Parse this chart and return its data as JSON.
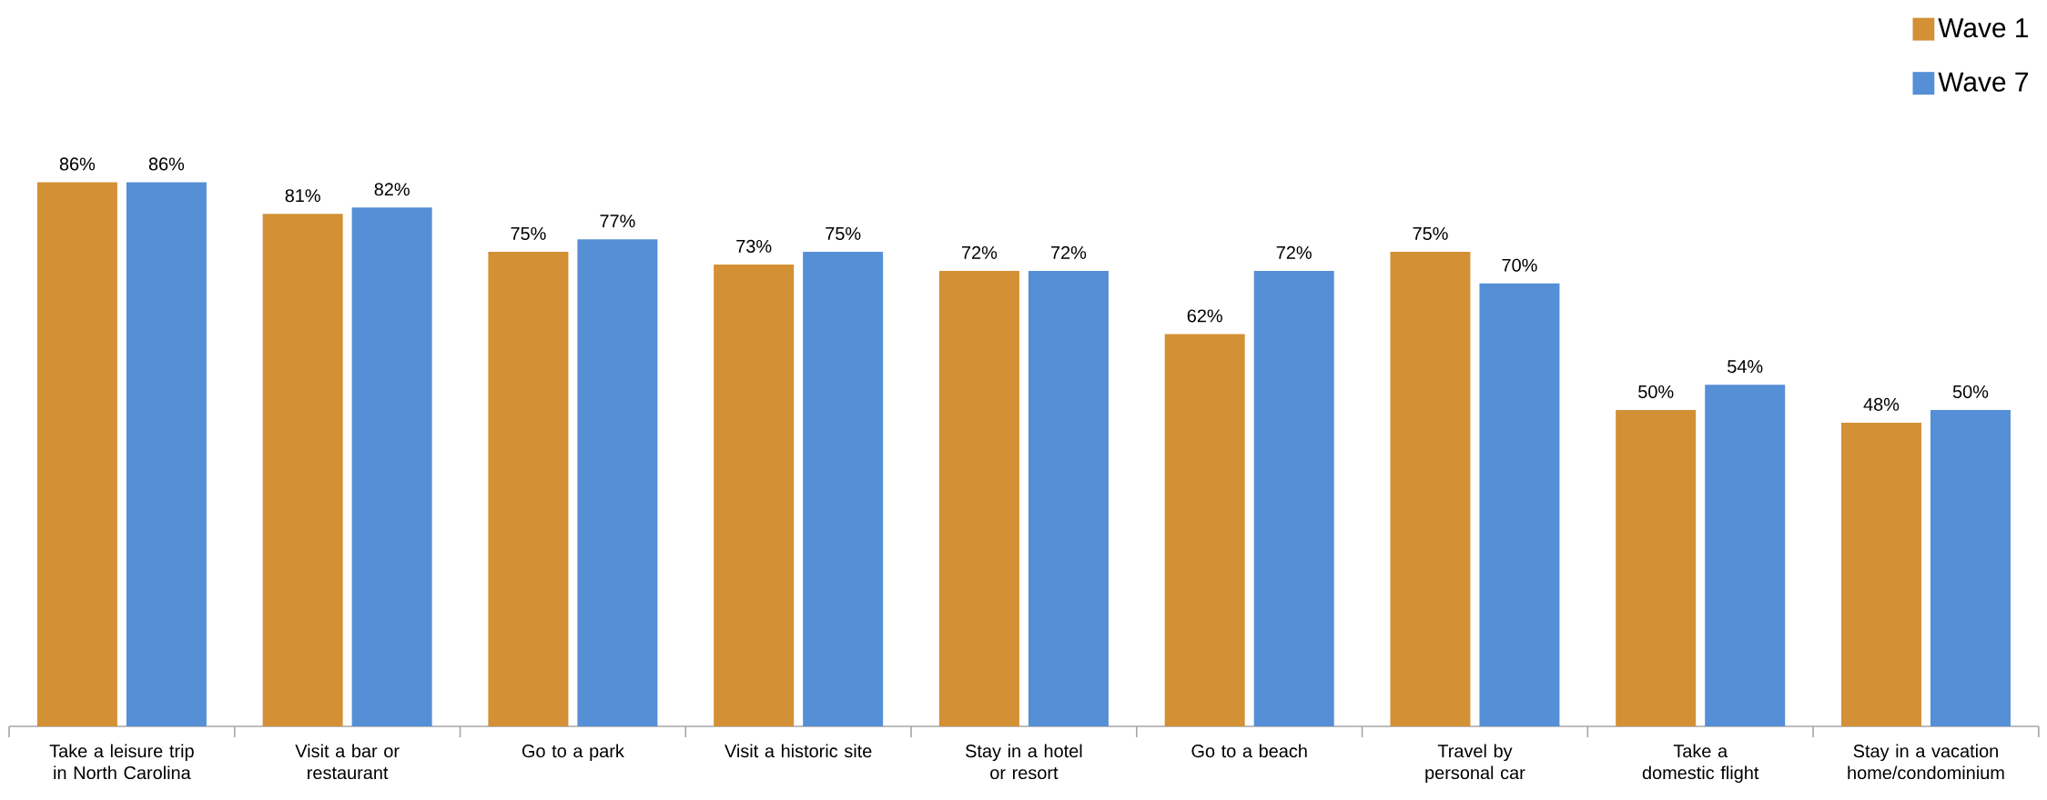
{
  "chart_data": {
    "type": "bar",
    "categories": [
      "Take a leisure trip in North Carolina",
      "Visit a bar or restaurant",
      "Go to a park",
      "Visit a historic site",
      "Stay in a hotel or resort",
      "Go to a beach",
      "Travel by personal car",
      "Take a domestic flight",
      "Stay in a vacation home/condominium"
    ],
    "series": [
      {
        "name": "Wave 1",
        "color": "#d39035",
        "values": [
          86,
          81,
          75,
          73,
          72,
          62,
          75,
          50,
          48
        ],
        "value_labels": [
          "86%",
          "81%",
          "75%",
          "73%",
          "72%",
          "62%",
          "75%",
          "50%",
          "48%"
        ]
      },
      {
        "name": "Wave 7",
        "color": "#558fd6",
        "values": [
          86,
          82,
          77,
          75,
          72,
          72,
          70,
          54,
          50
        ],
        "value_labels": [
          "86%",
          "82%",
          "77%",
          "75%",
          "72%",
          "72%",
          "70%",
          "54%",
          "50%"
        ]
      }
    ],
    "legend": "top right"
  }
}
